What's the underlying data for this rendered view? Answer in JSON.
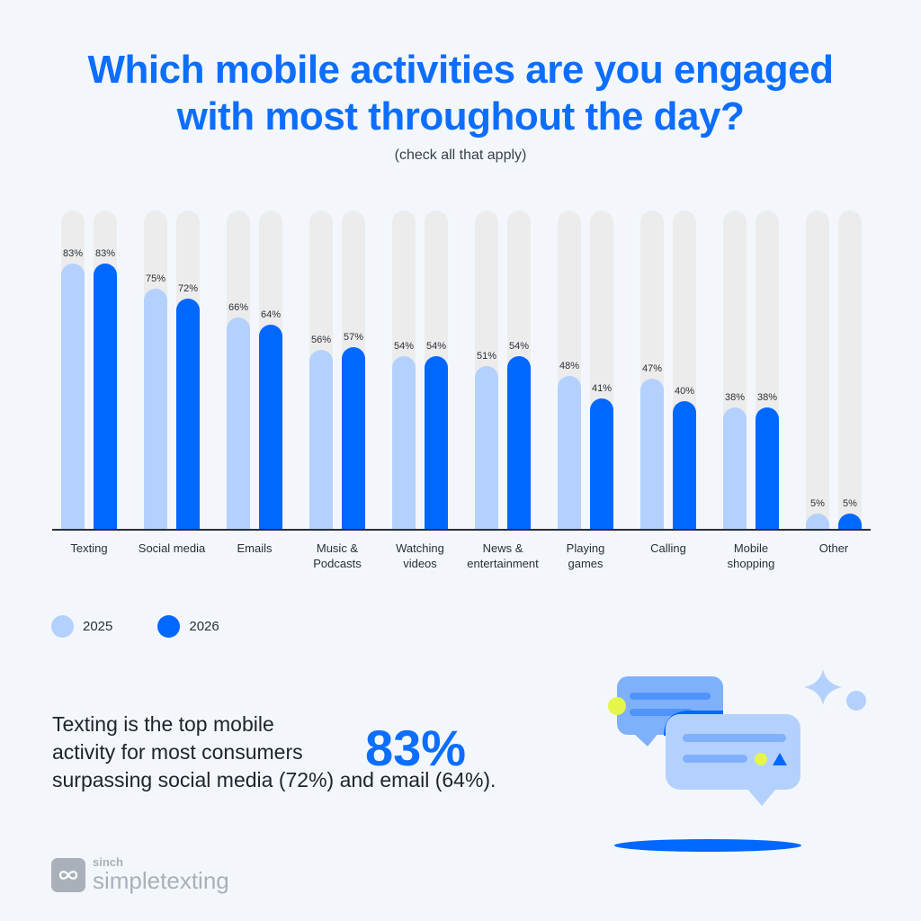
{
  "header": {
    "title_line1": "Which mobile activities are you engaged",
    "title_line2": "with most throughout the day?",
    "subtitle": "(check all that apply)"
  },
  "legend": {
    "items": [
      {
        "label": "2025",
        "color": "#b3d1fc"
      },
      {
        "label": "2026",
        "color": "#0067ff"
      }
    ]
  },
  "chart_data": {
    "type": "bar",
    "title": "Which mobile activities are you engaged with most throughout the day?",
    "subtitle": "(check all that apply)",
    "xlabel": "",
    "ylabel": "",
    "ylim": [
      0,
      100
    ],
    "grid": false,
    "legend_position": "bottom-left",
    "categories": [
      "Texting",
      "Social media",
      "Emails",
      "Music & Podcasts",
      "Watching videos",
      "News & entertainment",
      "Playing games",
      "Calling",
      "Mobile shopping",
      "Other"
    ],
    "series": [
      {
        "name": "2025",
        "color": "#b3d1fc",
        "values": [
          83,
          75,
          66,
          56,
          54,
          51,
          48,
          47,
          38,
          5
        ]
      },
      {
        "name": "2026",
        "color": "#0067ff",
        "values": [
          83,
          72,
          64,
          57,
          54,
          54,
          41,
          40,
          38,
          5
        ]
      }
    ]
  },
  "categories_display": [
    "Texting",
    "Social media",
    "Emails",
    "Music &\nPodcasts",
    "Watching\nvideos",
    "News &\nentertainment",
    "Playing\ngames",
    "Calling",
    "Mobile\nshopping",
    "Other"
  ],
  "insight": {
    "line1": "Texting is the top mobile",
    "line2": "activity for most consumers",
    "line3": "surpassing social media (72%) and email (64%).",
    "highlight": "83%"
  },
  "brand": {
    "small": "sinch",
    "name": "simpletexting"
  },
  "colors": {
    "accent": "#0d6efd",
    "bar_2025": "#b3d1fc",
    "bar_2026": "#0067ff",
    "track": "#ececec",
    "background": "#f3f7fb",
    "highlight_yellow": "#e6f54a"
  }
}
